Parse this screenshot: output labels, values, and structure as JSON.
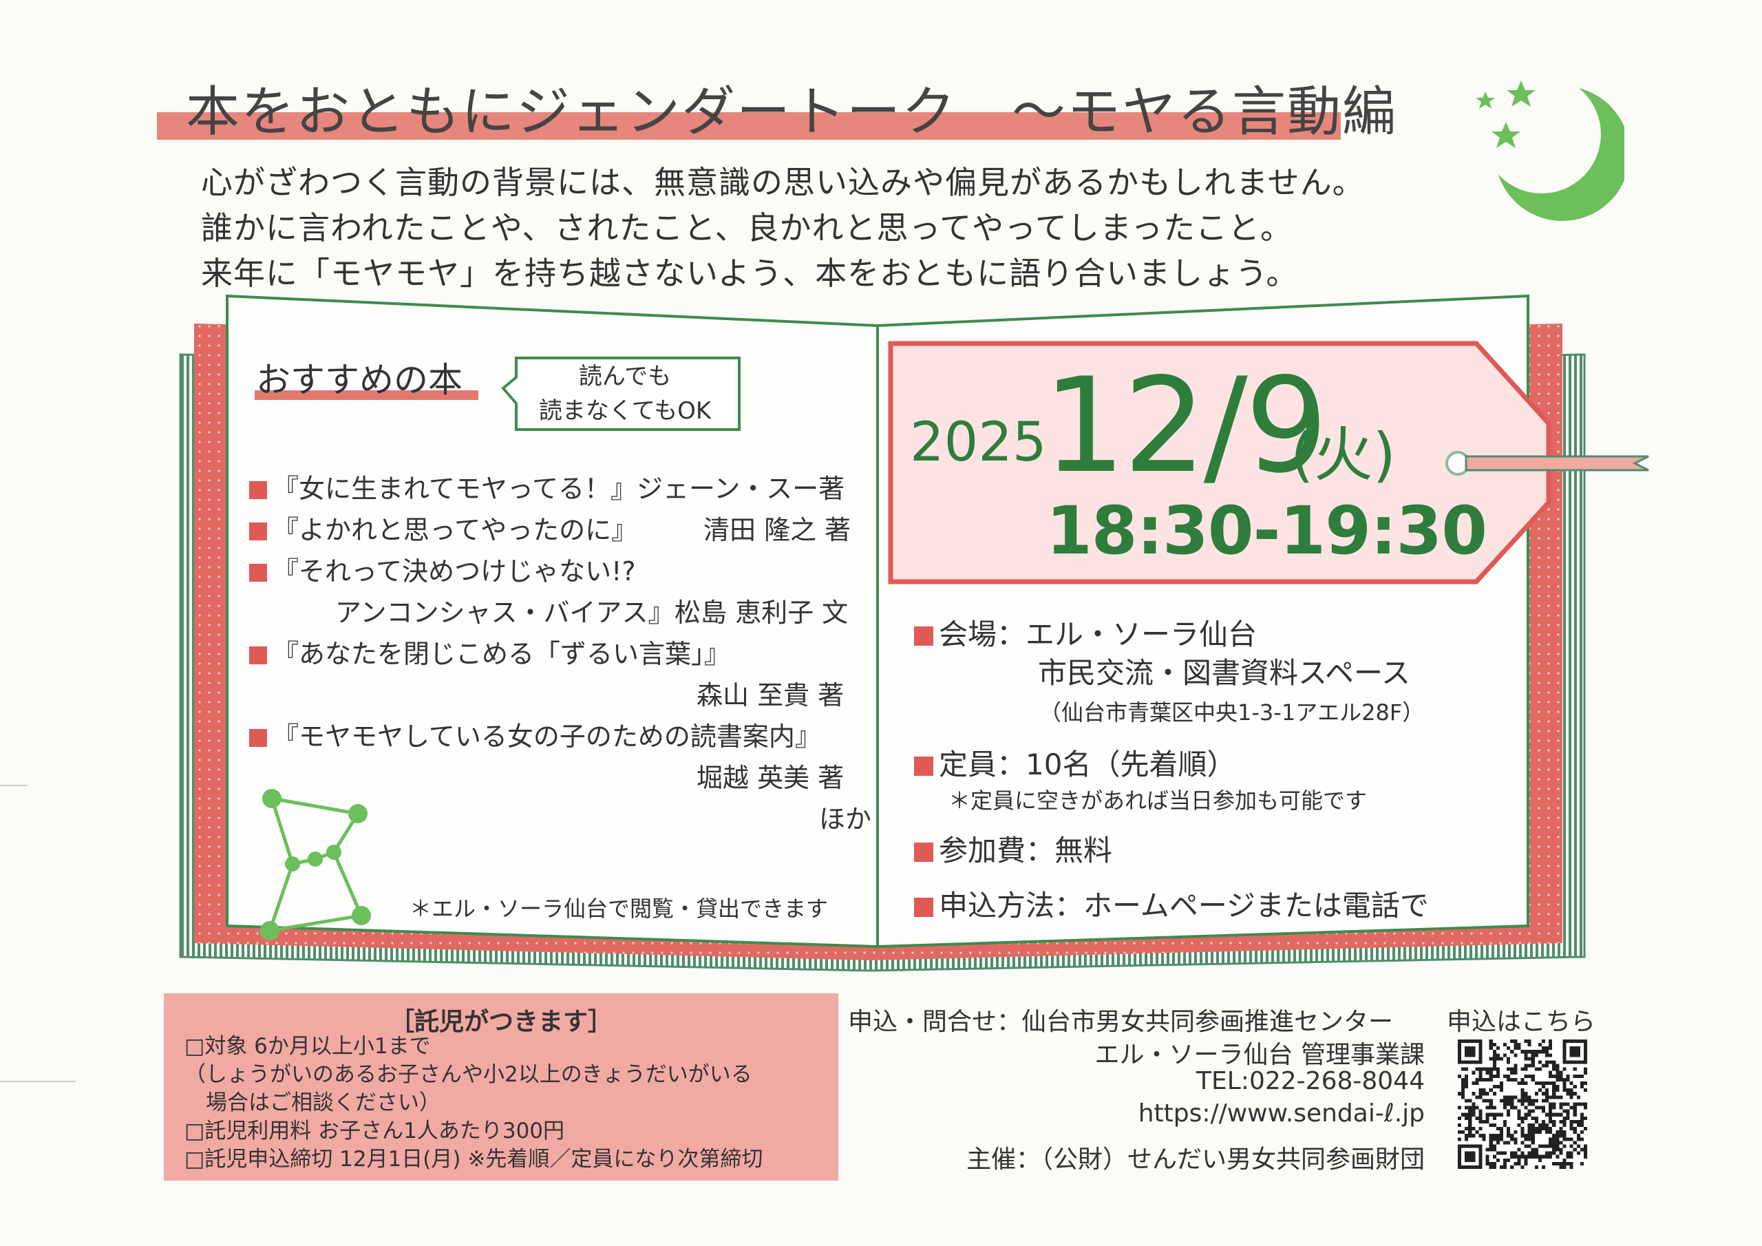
{
  "title": "本をおともにジェンダートーク　～モヤる言動編",
  "intro": [
    "心がざわつく言動の背景には、無意識の思い込みや偏見があるかもしれません。",
    "誰かに言われたことや、されたこと、良かれと思ってやってしまったこと。",
    "来年に「モヤモヤ」を持ち越さないよう、本をおともに語り合いましょう。"
  ],
  "recommend": {
    "heading": "おすすめの本",
    "bubble": [
      "読んでも",
      "読まなくてもOK"
    ],
    "books": [
      {
        "title": "『女に生まれてモヤってる！』",
        "author": "ジェーン・スー著"
      },
      {
        "title": "『よかれと思ってやったのに』",
        "author": "清田 隆之 著"
      },
      {
        "title": "『それって決めつけじゃない!?",
        "title2": "アンコンシャス・バイアス』",
        "author": "松島 恵利子 文"
      },
      {
        "title": "『あなたを閉じこめる「ずるい言葉」』",
        "author": "森山 至貴 著"
      },
      {
        "title": "『モヤモヤしている女の子のための読書案内』",
        "author": "堀越 英美 著"
      }
    ],
    "etc": "ほか",
    "note": "＊エル・ソーラ仙台で閲覧・貸出できます"
  },
  "event": {
    "year": "2025",
    "date": "12/9",
    "weekday": "(火)",
    "time": "18:30-19:30",
    "venue_label": "会場：",
    "venue_name": "エル・ソーラ仙台",
    "venue_room": "市民交流・図書資料スペース",
    "venue_address": "（仙台市青葉区中央1-3-1アエル28F）",
    "capacity": "定員：10名（先着順）",
    "capacity_note": "＊定員に空きがあれば当日参加も可能です",
    "fee": "参加費：無料",
    "apply": "申込方法：ホームページまたは電話で"
  },
  "childcare": {
    "heading": "［託児がつきます］",
    "lines": [
      "□対象 6か月以上小1まで",
      "（しょうがいのあるお子さんや小2以上のきょうだいがいる",
      "　場合はご相談ください）",
      "□託児利用料 お子さん1人あたり300円",
      "□託児申込締切 12月1日(月) ※先着順／定員になり次第締切"
    ]
  },
  "contact": {
    "label": "申込・問合せ：仙台市男女共同参画推進センター",
    "dept": "エル・ソーラ仙台 管理事業課",
    "tel": "TEL:022-268-8044",
    "url": "https://www.sendai-ℓ.jp",
    "organizer": "主催：（公財）せんだい男女共同参画財団",
    "qr_label": "申込はこちら"
  },
  "colors": {
    "pink": "#e6867c",
    "red": "#df5a55",
    "green": "#2e7d3c",
    "light_green": "#6cbf5a",
    "pink_box": "#f1a9a3"
  }
}
